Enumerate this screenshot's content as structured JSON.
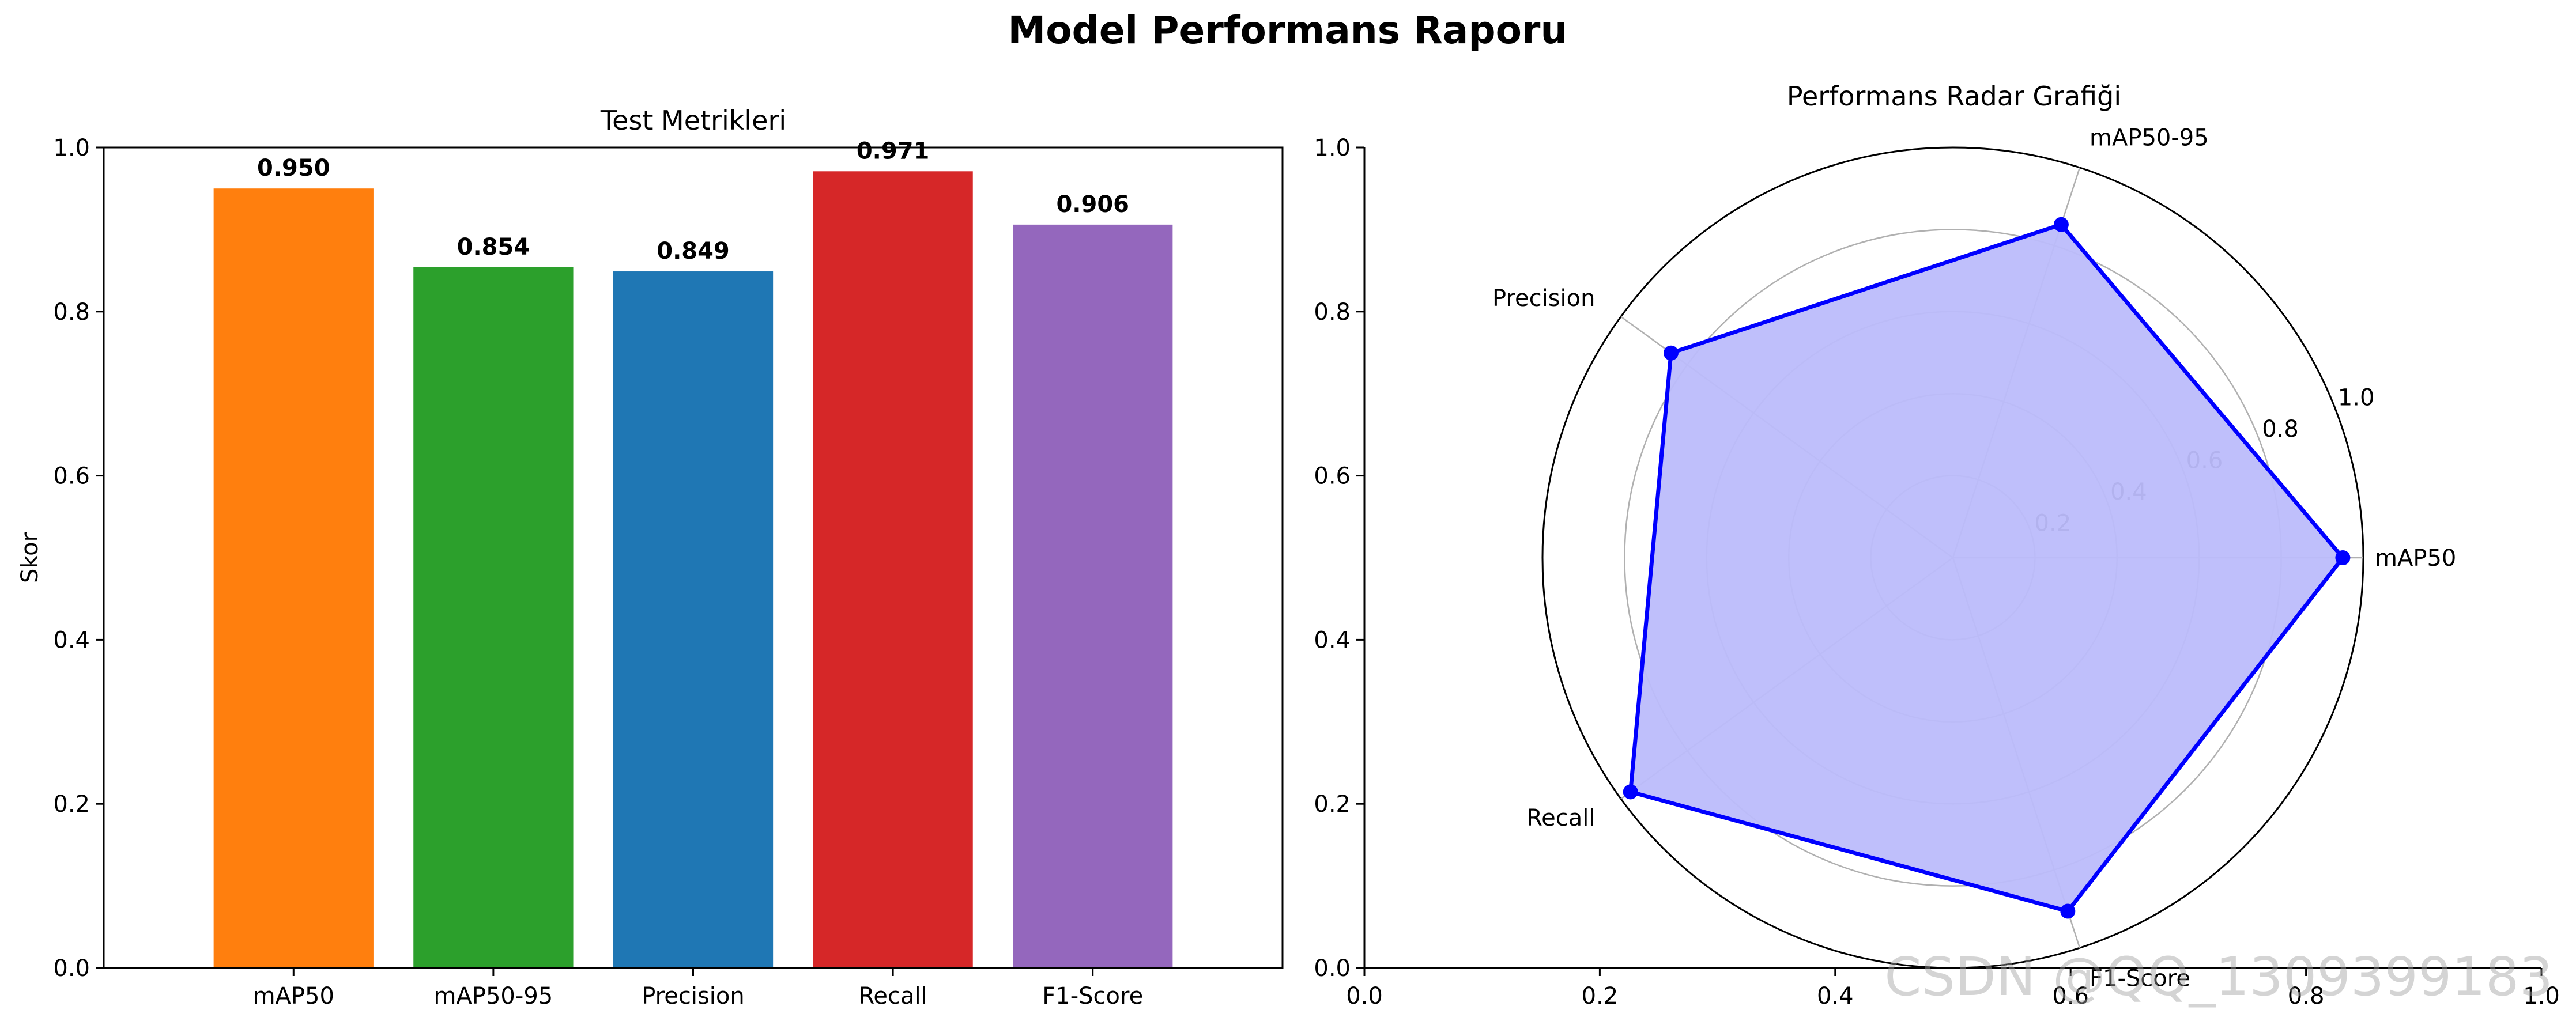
{
  "suptitle": "Model Performans Raporu",
  "watermark": "CSDN @QQ_1309399183",
  "colors": {
    "mAP50": "#ff7f0e",
    "mAP50-95": "#2ca02c",
    "Precision": "#1f77b4",
    "Recall": "#d62728",
    "F1-Score": "#9467bd",
    "radar_line": "#0000ff",
    "radar_fill": "#bcbcfb",
    "grid": "#b0b0b0"
  },
  "chart_data": [
    {
      "type": "bar",
      "title": "Test Metrikleri",
      "xlabel": "",
      "ylabel": "Skor",
      "categories": [
        "mAP50",
        "mAP50-95",
        "Precision",
        "Recall",
        "F1-Score"
      ],
      "values": [
        0.95,
        0.854,
        0.849,
        0.971,
        0.906
      ],
      "data_labels": [
        "0.950",
        "0.854",
        "0.849",
        "0.971",
        "0.906"
      ],
      "ylim": [
        0,
        1.0
      ],
      "yticks": [
        "0.0",
        "0.2",
        "0.4",
        "0.6",
        "0.8",
        "1.0"
      ],
      "grid": false
    },
    {
      "type": "radar",
      "title": "Performans Radar Grafiği",
      "axes": [
        "mAP50",
        "mAP50-95",
        "Precision",
        "Recall",
        "F1-Score"
      ],
      "values": [
        0.95,
        0.854,
        0.849,
        0.971,
        0.906
      ],
      "rlim": [
        0,
        1.0
      ],
      "rticks": [
        "0.2",
        "0.4",
        "0.6",
        "0.8",
        "1.0"
      ],
      "cartesian_xticks": [
        "0.0",
        "0.2",
        "0.4",
        "0.6",
        "0.8",
        "1.0"
      ],
      "cartesian_yticks": [
        "0.0",
        "0.2",
        "0.4",
        "0.6",
        "0.8",
        "1.0"
      ],
      "grid": true
    }
  ]
}
